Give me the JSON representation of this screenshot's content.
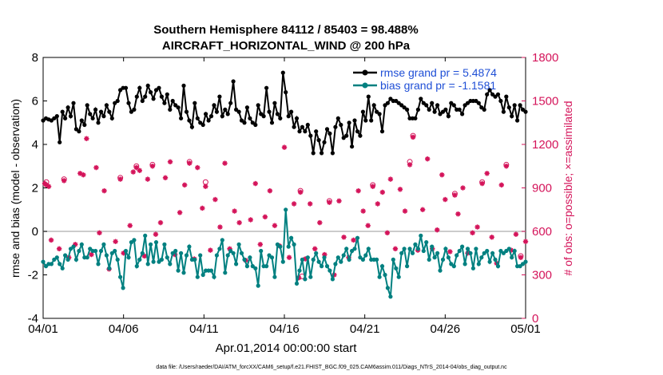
{
  "chart_data": {
    "type": "line",
    "title_line1": "Southern Hemisphere 84112 / 85403 = 98.488%",
    "title_line2": "AIRCRAFT_HORIZONTAL_WIND @ 200 hPa",
    "xlabel": "Apr.01,2014 00:00:00 start",
    "ylabel_left": "rmse and bias (model - observation)",
    "ylabel_right": "# of obs: o=possible; ×=assimilated",
    "footer": "data file: /Users/raeder/DAI/ATM_forcXX/CAM6_setup/f.e21.FHIST_BGC.f09_025.CAM6assim.011/Diags_NTrS_2014-04/obs_diag_output.nc",
    "x_ticks": [
      "04/01",
      "04/06",
      "04/11",
      "04/16",
      "04/21",
      "04/26",
      "05/01"
    ],
    "xlim_days": [
      0,
      30
    ],
    "ylim_left": [
      -4,
      8
    ],
    "yticks_left": [
      "-4",
      "-2",
      "0",
      "2",
      "4",
      "6",
      "8"
    ],
    "ylim_right": [
      0,
      1800
    ],
    "yticks_right": [
      "0",
      "300",
      "600",
      "900",
      "1200",
      "1500",
      "1800"
    ],
    "legend": {
      "rmse": "rmse grand pr = 5.4874",
      "bias": "bias grand pr = -1.1581"
    },
    "colors": {
      "rmse": "#000000",
      "bias": "#008080",
      "obs": "#d4145a",
      "zero": "#bbbbbb"
    },
    "rmse": [
      5.1,
      5.2,
      5.15,
      5.1,
      5.2,
      5.3,
      4.1,
      5.5,
      5.2,
      5.7,
      5.3,
      5.9,
      4.7,
      4.6,
      5.1,
      4.9,
      5.8,
      5.4,
      5.2,
      5.6,
      5.0,
      5.5,
      5.3,
      5.8,
      5.5,
      5.2,
      5.9,
      6.0,
      6.5,
      6.6,
      6.6,
      5.9,
      5.5,
      5.6,
      6.2,
      6.6,
      6.0,
      6.2,
      6.7,
      6.4,
      6.1,
      6.5,
      6.6,
      6.2,
      5.9,
      6.3,
      5.6,
      6.0,
      5.8,
      5.7,
      5.2,
      6.7,
      5.5,
      5.1,
      4.8,
      5.9,
      5.2,
      5.0,
      4.9,
      5.4,
      5.1,
      5.3,
      5.8,
      5.5,
      6.2,
      5.3,
      5.6,
      5.4,
      5.9,
      6.9,
      5.6,
      5.5,
      5.1,
      5.0,
      5.7,
      5.2,
      5.0,
      4.9,
      5.8,
      5.4,
      5.3,
      6.6,
      5.5,
      5.0,
      5.9,
      5.4,
      5.2,
      7.3,
      6.4,
      5.3,
      5.5,
      4.8,
      5.2,
      4.6,
      4.8,
      4.6,
      4.9,
      4.4,
      3.6,
      4.6,
      4.2,
      3.6,
      4.1,
      4.7,
      4.5,
      3.6,
      4.8,
      5.2,
      4.9,
      4.3,
      4.4,
      5.0,
      3.9,
      5.1,
      4.6,
      4.4,
      5.5,
      5.1,
      6.2,
      5.1,
      5.8,
      5.5,
      5.4,
      4.6,
      5.8,
      5.9,
      6.1,
      6.0,
      6.0,
      5.9,
      5.8,
      5.7,
      5.6,
      5.2,
      5.2,
      5.2,
      5.6,
      6.1,
      5.9,
      5.8,
      5.6,
      5.9,
      5.5,
      5.8,
      5.4,
      5.5,
      5.6,
      5.3,
      5.9,
      5.8,
      5.6,
      5.6,
      5.4,
      5.8,
      5.9,
      6.0,
      6.0,
      6.0,
      5.9,
      5.7,
      5.6,
      6.3,
      6.5,
      6.3,
      6.2,
      6.3,
      6.0,
      5.5,
      6.2,
      5.7,
      5.3,
      5.8,
      5.1,
      5.8,
      5.6,
      5.5
    ],
    "bias": [
      -1.4,
      -1.6,
      -1.5,
      -1.5,
      -1.3,
      -1.2,
      -1.5,
      -1.7,
      -1.1,
      -1.3,
      -0.8,
      -0.7,
      -1.3,
      -0.9,
      -0.6,
      -1.2,
      -1.2,
      -0.8,
      -0.9,
      -0.9,
      -1.5,
      -0.9,
      -0.6,
      -1.1,
      -1.7,
      -1.0,
      -0.9,
      -1.3,
      -2.1,
      -2.6,
      -0.9,
      -1.2,
      -0.5,
      -0.4,
      -1.6,
      -1.3,
      -1.0,
      -0.2,
      -1.5,
      -0.6,
      -1.4,
      -0.5,
      -1.4,
      -1.3,
      -0.6,
      -1.2,
      -1.5,
      -1.0,
      -0.9,
      -1.8,
      -1.0,
      -1.9,
      -1.1,
      -0.7,
      -1.3,
      -1.3,
      -2.1,
      -1.1,
      -2.0,
      -1.8,
      -1.8,
      -1.8,
      -2.1,
      -1.1,
      -0.8,
      -0.4,
      -1.9,
      -1.1,
      -0.9,
      -1.0,
      -1.5,
      -0.6,
      -1.0,
      -1.3,
      -1.6,
      -1.2,
      -1.6,
      -1.7,
      -2.5,
      -0.9,
      -1.6,
      -1.6,
      -1.1,
      -1.2,
      -2.1,
      -0.6,
      -0.7,
      -1.4,
      1.0,
      -0.7,
      -0.3,
      -0.6,
      -2.4,
      -1.8,
      -1.3,
      -2.2,
      -1.2,
      -2.1,
      -1.3,
      -1.0,
      -1.4,
      -1.6,
      -1.2,
      -1.6,
      -1.8,
      -2.2,
      -1.5,
      -1.2,
      -1.4,
      -1.1,
      -0.8,
      -1.3,
      -0.9,
      -0.8,
      -0.3,
      -1.2,
      -1.3,
      -1.1,
      -0.8,
      -1.3,
      -1.3,
      -1.3,
      -2.1,
      -1.6,
      -2.0,
      -2.6,
      -3.0,
      -1.3,
      -1.7,
      -2.1,
      -1.0,
      -0.8,
      -1.6,
      -0.8,
      -1.0,
      -0.6,
      -0.8,
      -0.2,
      -0.9,
      -0.5,
      -1.3,
      -0.7,
      -1.2,
      -1.0,
      -1.8,
      -1.3,
      -0.8,
      -1.2,
      -1.5,
      -1.6,
      -1.1,
      -0.9,
      -0.7,
      -1.5,
      -0.8,
      -1.0,
      -1.7,
      -0.8,
      -1.5,
      -1.2,
      -1.0,
      -0.9,
      -1.4,
      -1.0,
      -1.3,
      -1.6,
      -0.9,
      -1.0,
      -0.9,
      -0.8,
      -1.2,
      -0.9,
      -1.6,
      -1.6,
      -1.5,
      -1.4
    ],
    "obs": [
      [
        0.1,
        930
      ],
      [
        0.2,
        920
      ],
      [
        0.35,
        910
      ],
      [
        0.5,
        540
      ],
      [
        1.0,
        480
      ],
      [
        1.3,
        950
      ],
      [
        1.6,
        420
      ],
      [
        2.0,
        510
      ],
      [
        2.3,
        1000
      ],
      [
        2.5,
        990
      ],
      [
        2.7,
        1240
      ],
      [
        3.0,
        440
      ],
      [
        3.3,
        1040
      ],
      [
        3.5,
        590
      ],
      [
        3.8,
        880
      ],
      [
        4.1,
        340
      ],
      [
        4.5,
        530
      ],
      [
        4.8,
        960
      ],
      [
        5.0,
        450
      ],
      [
        5.4,
        640
      ],
      [
        5.6,
        1010
      ],
      [
        5.8,
        1040
      ],
      [
        6.0,
        1020
      ],
      [
        6.3,
        430
      ],
      [
        6.5,
        960
      ],
      [
        6.8,
        1050
      ],
      [
        7.0,
        580
      ],
      [
        7.3,
        660
      ],
      [
        7.6,
        970
      ],
      [
        7.9,
        1080
      ],
      [
        8.2,
        440
      ],
      [
        8.5,
        730
      ],
      [
        8.8,
        920
      ],
      [
        9.1,
        1070
      ],
      [
        9.4,
        410
      ],
      [
        9.6,
        1040
      ],
      [
        9.9,
        760
      ],
      [
        10.1,
        910
      ],
      [
        10.4,
        470
      ],
      [
        10.7,
        820
      ],
      [
        11.0,
        630
      ],
      [
        11.3,
        1070
      ],
      [
        11.6,
        480
      ],
      [
        11.9,
        740
      ],
      [
        12.2,
        660
      ],
      [
        12.6,
        400
      ],
      [
        12.9,
        680
      ],
      [
        13.2,
        930
      ],
      [
        13.5,
        510
      ],
      [
        13.8,
        700
      ],
      [
        14.1,
        880
      ],
      [
        14.4,
        640
      ],
      [
        14.7,
        500
      ],
      [
        15.0,
        1180
      ],
      [
        15.3,
        420
      ],
      [
        15.6,
        790
      ],
      [
        15.9,
        280
      ],
      [
        16.0,
        870
      ],
      [
        16.3,
        410
      ],
      [
        16.6,
        790
      ],
      [
        16.9,
        480
      ],
      [
        17.2,
        660
      ],
      [
        17.5,
        440
      ],
      [
        17.8,
        800
      ],
      [
        18.1,
        300
      ],
      [
        18.4,
        810
      ],
      [
        18.7,
        560
      ],
      [
        19.0,
        420
      ],
      [
        19.3,
        540
      ],
      [
        19.6,
        880
      ],
      [
        19.9,
        740
      ],
      [
        20.2,
        640
      ],
      [
        20.5,
        910
      ],
      [
        20.8,
        790
      ],
      [
        21.1,
        870
      ],
      [
        21.4,
        590
      ],
      [
        21.6,
        960
      ],
      [
        21.9,
        480
      ],
      [
        22.2,
        890
      ],
      [
        22.5,
        740
      ],
      [
        22.8,
        1060
      ],
      [
        23.0,
        1250
      ],
      [
        23.3,
        470
      ],
      [
        23.6,
        750
      ],
      [
        23.9,
        1100
      ],
      [
        24.2,
        480
      ],
      [
        24.5,
        610
      ],
      [
        24.8,
        990
      ],
      [
        25.0,
        820
      ],
      [
        25.3,
        460
      ],
      [
        25.6,
        850
      ],
      [
        25.8,
        720
      ],
      [
        26.1,
        900
      ],
      [
        26.4,
        450
      ],
      [
        26.7,
        590
      ],
      [
        27.0,
        630
      ],
      [
        27.3,
        930
      ],
      [
        27.6,
        1000
      ],
      [
        27.9,
        560
      ],
      [
        28.2,
        380
      ],
      [
        28.5,
        920
      ],
      [
        28.8,
        1050
      ],
      [
        29.1,
        470
      ],
      [
        29.4,
        580
      ],
      [
        29.7,
        420
      ],
      [
        30.0,
        530
      ]
    ],
    "obs_possible": [
      [
        0.2,
        940
      ],
      [
        1.3,
        960
      ],
      [
        4.8,
        970
      ],
      [
        5.8,
        1050
      ],
      [
        6.8,
        1060
      ],
      [
        9.1,
        1080
      ],
      [
        10.1,
        940
      ],
      [
        16.0,
        880
      ],
      [
        16.1,
        290
      ],
      [
        17.8,
        810
      ],
      [
        20.5,
        920
      ],
      [
        22.8,
        1080
      ],
      [
        23.0,
        1260
      ],
      [
        25.6,
        860
      ],
      [
        27.3,
        940
      ],
      [
        28.8,
        1060
      ],
      [
        29.7,
        430
      ]
    ]
  }
}
